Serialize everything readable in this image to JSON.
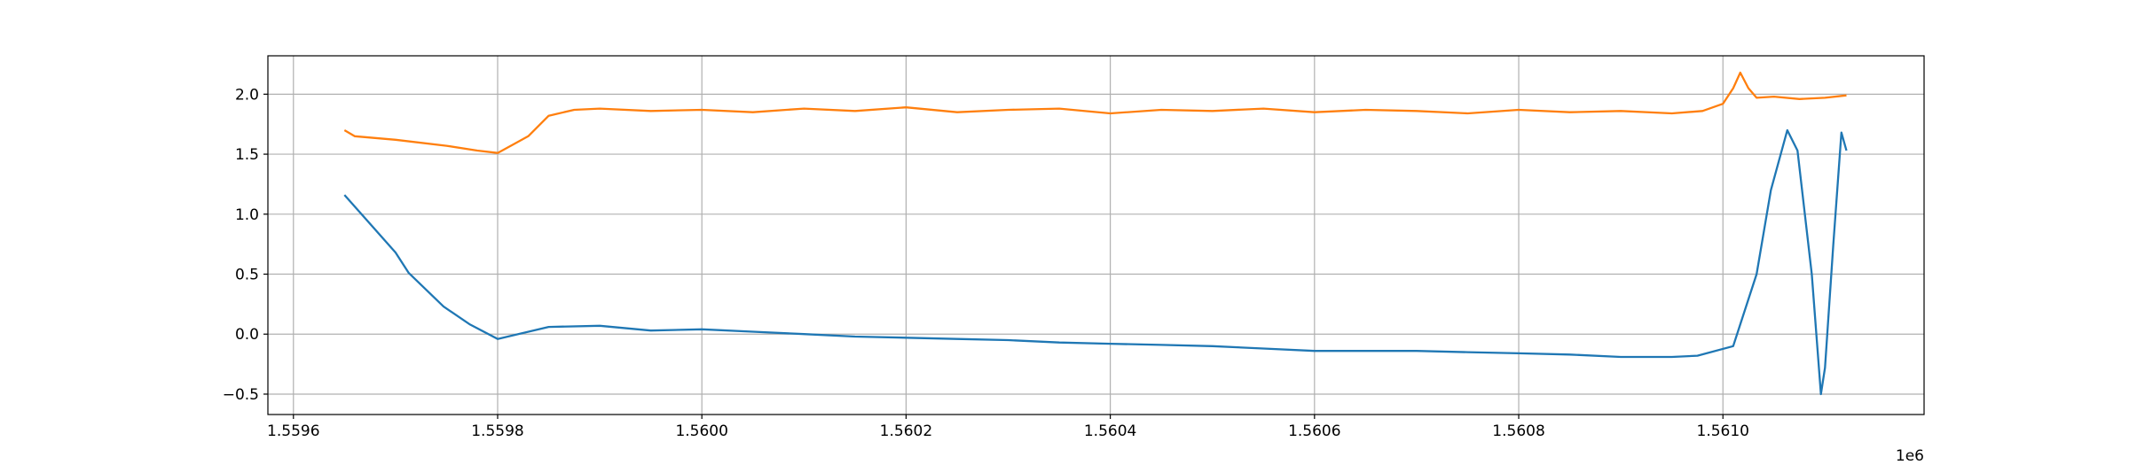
{
  "chart_data": {
    "type": "line",
    "x_offset_label": "1e6",
    "xlim": [
      1559575,
      1561197
    ],
    "xticks": [
      {
        "value": 1559600,
        "label": "1.5596"
      },
      {
        "value": 1559800,
        "label": "1.5598"
      },
      {
        "value": 1560000,
        "label": "1.5600"
      },
      {
        "value": 1560200,
        "label": "1.5602"
      },
      {
        "value": 1560400,
        "label": "1.5604"
      },
      {
        "value": 1560600,
        "label": "1.5606"
      },
      {
        "value": 1560800,
        "label": "1.5608"
      },
      {
        "value": 1561000,
        "label": "1.5610"
      }
    ],
    "ylim": [
      -0.67,
      2.32
    ],
    "yticks": [
      {
        "value": -0.5,
        "label": "−0.5"
      },
      {
        "value": 0,
        "label": "0.0"
      },
      {
        "value": 0.5,
        "label": "0.5"
      },
      {
        "value": 1,
        "label": "1.0"
      },
      {
        "value": 1.5,
        "label": "1.5"
      },
      {
        "value": 2,
        "label": "2.0"
      }
    ],
    "grid": true,
    "series": [
      {
        "color": "#1f77b4",
        "x": [
          1559650,
          1559700,
          1559713,
          1559747,
          1559773,
          1559800,
          1559850,
          1559900,
          1559950,
          1560000,
          1560050,
          1560100,
          1560150,
          1560200,
          1560250,
          1560300,
          1560350,
          1560400,
          1560450,
          1560500,
          1560550,
          1560600,
          1560650,
          1560700,
          1560750,
          1560800,
          1560850,
          1560900,
          1560950,
          1560975,
          1561010,
          1561033,
          1561047,
          1561063,
          1561073,
          1561087,
          1561096,
          1561100,
          1561108,
          1561116,
          1561121
        ],
        "values": [
          1.16,
          0.68,
          0.51,
          0.23,
          0.08,
          -0.04,
          0.06,
          0.07,
          0.03,
          0.04,
          0.02,
          0.0,
          -0.02,
          -0.03,
          -0.04,
          -0.05,
          -0.07,
          -0.08,
          -0.09,
          -0.1,
          -0.12,
          -0.14,
          -0.14,
          -0.14,
          -0.15,
          -0.16,
          -0.17,
          -0.19,
          -0.19,
          -0.18,
          -0.1,
          0.5,
          1.2,
          1.7,
          1.53,
          0.5,
          -0.5,
          -0.28,
          0.74,
          1.68,
          1.53
        ]
      },
      {
        "color": "#ff7f0e",
        "x": [
          1559650,
          1559660,
          1559700,
          1559750,
          1559780,
          1559800,
          1559815,
          1559830,
          1559850,
          1559875,
          1559900,
          1559950,
          1560000,
          1560050,
          1560100,
          1560150,
          1560200,
          1560250,
          1560300,
          1560350,
          1560400,
          1560450,
          1560500,
          1560550,
          1560600,
          1560650,
          1560700,
          1560750,
          1560800,
          1560850,
          1560900,
          1560950,
          1560980,
          1561000,
          1561010,
          1561017,
          1561025,
          1561033,
          1561050,
          1561075,
          1561100,
          1561121
        ],
        "values": [
          1.7,
          1.65,
          1.62,
          1.57,
          1.53,
          1.51,
          1.58,
          1.65,
          1.82,
          1.87,
          1.88,
          1.86,
          1.87,
          1.85,
          1.88,
          1.86,
          1.89,
          1.85,
          1.87,
          1.88,
          1.84,
          1.87,
          1.86,
          1.88,
          1.85,
          1.87,
          1.86,
          1.84,
          1.87,
          1.85,
          1.86,
          1.84,
          1.86,
          1.92,
          2.05,
          2.18,
          2.05,
          1.97,
          1.98,
          1.96,
          1.97,
          1.99
        ]
      }
    ]
  }
}
